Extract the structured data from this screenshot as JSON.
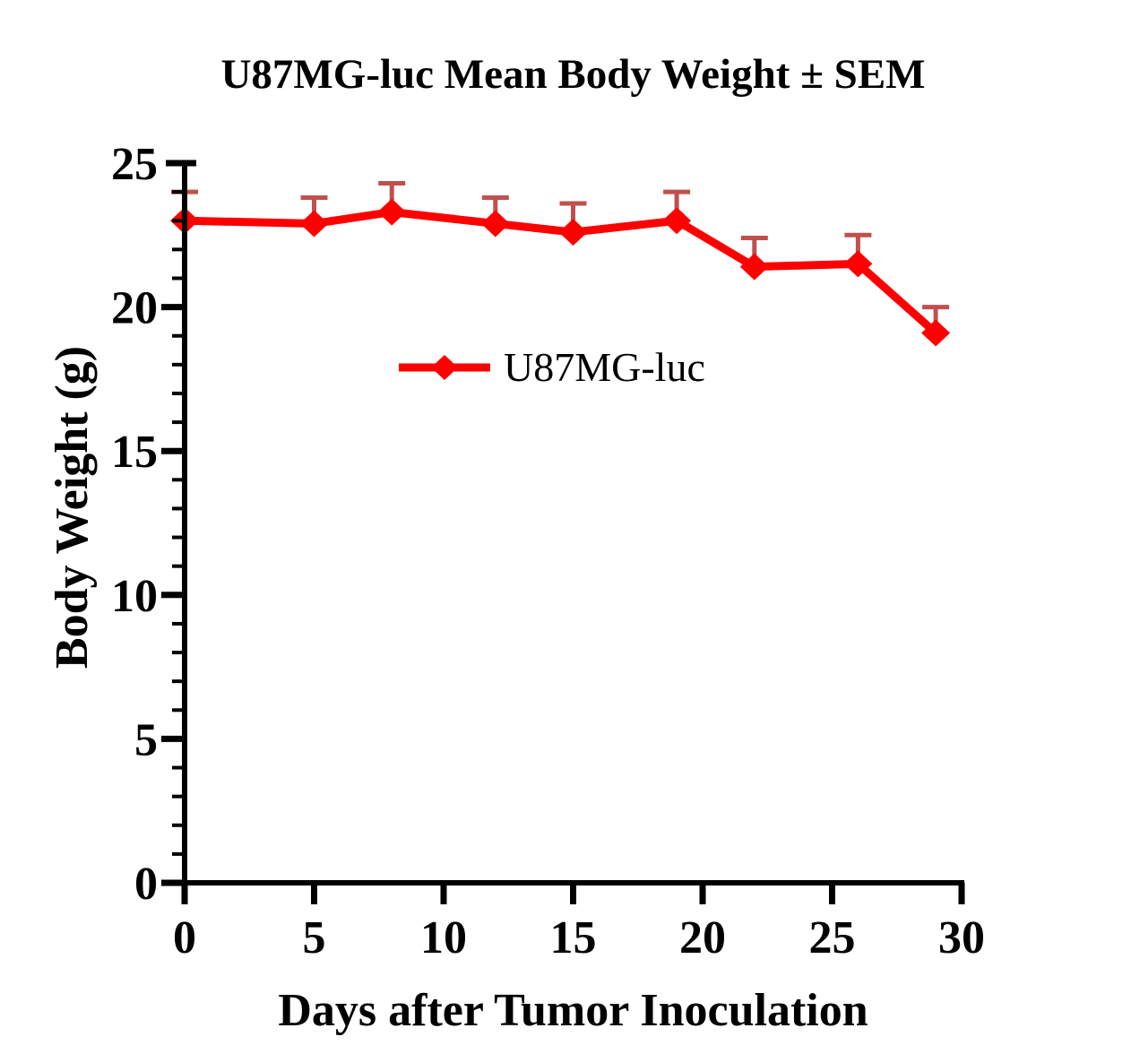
{
  "title": "U87MG-luc Mean Body Weight ± SEM",
  "colors": {
    "series_line": "#FF0000",
    "error_bar": "#C0504D",
    "axis": "#000000",
    "background": "#FFFFFF"
  },
  "legend": {
    "entries": [
      "U87MG-luc"
    ],
    "position": "inside-upper-middle"
  },
  "chart_data": {
    "type": "line",
    "title": "U87MG-luc Mean Body Weight ± SEM",
    "xlabel": "Days after Tumor Inoculation",
    "ylabel": "Body Weight (g)",
    "xlim": [
      0,
      30
    ],
    "ylim": [
      0,
      25
    ],
    "x_major_ticks": [
      0,
      5,
      10,
      15,
      20,
      25,
      30
    ],
    "y_major_ticks": [
      0,
      5,
      10,
      15,
      20,
      25
    ],
    "y_minor_tick_interval": 1,
    "grid": false,
    "legend_position": "inside-upper-middle",
    "series": [
      {
        "name": "U87MG-luc",
        "x": [
          0,
          5,
          8,
          12,
          15,
          19,
          22,
          26,
          29
        ],
        "y": [
          23.0,
          22.9,
          23.3,
          22.9,
          22.6,
          23.0,
          21.4,
          21.5,
          19.1
        ],
        "sem_upper": [
          1.0,
          0.9,
          1.0,
          0.9,
          1.0,
          1.0,
          1.0,
          1.0,
          0.9
        ],
        "error_bars": "up-only",
        "marker": "diamond",
        "line_color": "#FF0000",
        "error_bar_color": "#C0504D"
      }
    ]
  }
}
